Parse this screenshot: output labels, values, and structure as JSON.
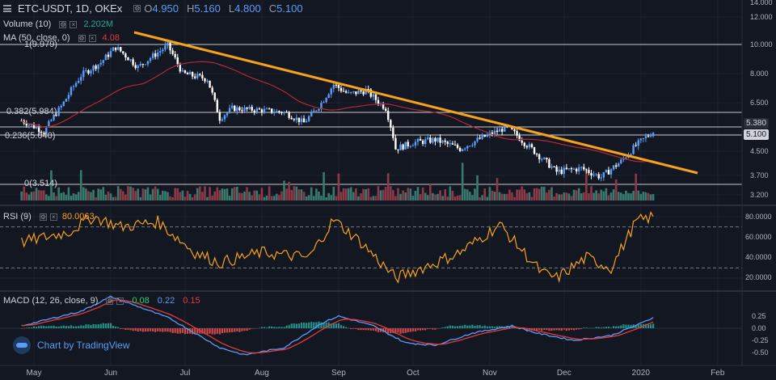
{
  "header": {
    "symbol": "ETC-USDT, 1D, OKEx",
    "open_label": "O",
    "open": "4.950",
    "high_label": "H",
    "high": "5.160",
    "low_label": "L",
    "low": "4.800",
    "close_label": "C",
    "close": "5.100",
    "volume_label": "Volume (10)",
    "volume_value": "2.202M",
    "ma_label": "MA (50, close, 0)",
    "ma_value": "4.08"
  },
  "rsi": {
    "label": "RSI (9)",
    "value": "80.0063"
  },
  "macd": {
    "label": "MACD (12, 26, close, 9)",
    "hist": "0.08",
    "macd": "0.22",
    "signal": "0.15"
  },
  "fib": {
    "l1": "1(9.979)",
    "l0382": "0.382(5.984)",
    "l0236": "0.236(5.040)",
    "l0": "0(3.514)"
  },
  "price_tags": {
    "level": "5.380",
    "last": "5.100"
  },
  "branding": "Chart by TradingView",
  "colors": {
    "background": "#131722",
    "up": "#5b9cf6",
    "down": "#ffffff",
    "trendline": "#f7a21b",
    "ma": "#b22833",
    "rsi": "#f7a21b",
    "macd": "#5b9cf6",
    "signal": "#e33b3b",
    "hist": "#26a69a",
    "vol_up": "#3a7a6e",
    "vol_down": "#8a3a48"
  },
  "chart_data": {
    "type": "candlestick",
    "time_axis": [
      "May",
      "Jun",
      "Jul",
      "Aug",
      "Sep",
      "Oct",
      "Nov",
      "Dec",
      "2020",
      "Feb"
    ],
    "price_axis_ticks": [
      "14.000",
      "12.000",
      "10.000",
      "8.000",
      "6.500",
      "5.380",
      "5.100",
      "4.500",
      "3.700",
      "3.200"
    ],
    "rsi_ticks": [
      "80.0000",
      "60.0000",
      "40.0000",
      "20.0000"
    ],
    "macd_ticks": [
      "0.50",
      "0.25",
      "0.00",
      "-0.25",
      "-0.50"
    ],
    "price_key_points": [
      [
        "Apr 26",
        5.6
      ],
      [
        "May 5",
        5.1
      ],
      [
        "May 12",
        6.3
      ],
      [
        "May 20",
        7.9
      ],
      [
        "May 28",
        8.7
      ],
      [
        "Jun 3",
        9.8
      ],
      [
        "Jun 12",
        8.4
      ],
      [
        "Jun 24",
        9.9
      ],
      [
        "Jun 30",
        8.0
      ],
      [
        "Jul 10",
        7.7
      ],
      [
        "Jul 15",
        5.7
      ],
      [
        "Jul 20",
        6.2
      ],
      [
        "Aug 1",
        6.1
      ],
      [
        "Aug 10",
        6.0
      ],
      [
        "Aug 18",
        5.5
      ],
      [
        "Aug 24",
        6.3
      ],
      [
        "Aug 30",
        7.4
      ],
      [
        "Sep 5",
        6.9
      ],
      [
        "Sep 12",
        7.1
      ],
      [
        "Sep 20",
        6.2
      ],
      [
        "Sep 24",
        4.5
      ],
      [
        "Oct 1",
        4.7
      ],
      [
        "Oct 10",
        4.8
      ],
      [
        "Oct 20",
        4.5
      ],
      [
        "Nov 1",
        5.0
      ],
      [
        "Nov 8",
        5.3
      ],
      [
        "Nov 15",
        4.7
      ],
      [
        "Nov 22",
        4.2
      ],
      [
        "Nov 28",
        3.8
      ],
      [
        "Dec 8",
        3.9
      ],
      [
        "Dec 16",
        3.65
      ],
      [
        "Dec 24",
        4.1
      ],
      [
        "Dec 30",
        4.6
      ],
      [
        "Jan 6",
        5.1
      ]
    ],
    "rsi_key_points": [
      [
        "Apr 26",
        55
      ],
      [
        "May 15",
        65
      ],
      [
        "May 25",
        80
      ],
      [
        "Jun 5",
        70
      ],
      [
        "Jun 20",
        75
      ],
      [
        "Jul 5",
        45
      ],
      [
        "Jul 15",
        35
      ],
      [
        "Aug 1",
        45
      ],
      [
        "Aug 20",
        40
      ],
      [
        "Aug 30",
        77
      ],
      [
        "Sep 10",
        55
      ],
      [
        "Sep 24",
        20
      ],
      [
        "Oct 10",
        35
      ],
      [
        "Oct 20",
        45
      ],
      [
        "Nov 5",
        72
      ],
      [
        "Nov 22",
        25
      ],
      [
        "Nov 28",
        20
      ],
      [
        "Dec 10",
        40
      ],
      [
        "Dec 20",
        30
      ],
      [
        "Dec 30",
        75
      ],
      [
        "Jan 6",
        80
      ]
    ],
    "macd_key_points": [
      [
        "Apr 26",
        0.05
      ],
      [
        "May 20",
        0.35
      ],
      [
        "Jun 1",
        0.65
      ],
      [
        "Jun 12",
        0.45
      ],
      [
        "Jun 25",
        0.2
      ],
      [
        "Jul 15",
        -0.4
      ],
      [
        "Jul 25",
        -0.55
      ],
      [
        "Aug 10",
        -0.4
      ],
      [
        "Aug 25",
        0.1
      ],
      [
        "Sep 1",
        0.25
      ],
      [
        "Sep 15",
        0.05
      ],
      [
        "Sep 28",
        -0.3
      ],
      [
        "Oct 10",
        -0.35
      ],
      [
        "Oct 25",
        -0.1
      ],
      [
        "Nov 10",
        0.05
      ],
      [
        "Nov 20",
        -0.1
      ],
      [
        "Dec 5",
        -0.25
      ],
      [
        "Dec 20",
        -0.15
      ],
      [
        "Jan 1",
        0.1
      ],
      [
        "Jan 6",
        0.22
      ]
    ]
  }
}
